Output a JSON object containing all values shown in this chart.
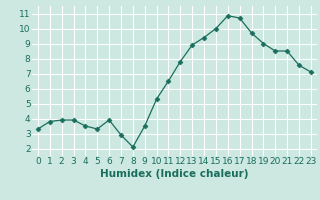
{
  "x": [
    0,
    1,
    2,
    3,
    4,
    5,
    6,
    7,
    8,
    9,
    10,
    11,
    12,
    13,
    14,
    15,
    16,
    17,
    18,
    19,
    20,
    21,
    22,
    23
  ],
  "y": [
    3.3,
    3.8,
    3.9,
    3.9,
    3.5,
    3.3,
    3.9,
    2.9,
    2.1,
    3.5,
    5.3,
    6.5,
    7.8,
    8.9,
    9.4,
    10.0,
    10.85,
    10.7,
    9.7,
    9.0,
    8.5,
    8.5,
    7.55,
    7.1
  ],
  "line_color": "#1a6e5e",
  "marker": "D",
  "marker_size": 2.5,
  "bg_color": "#cce8e0",
  "grid_color": "#ffffff",
  "xlabel": "Humidex (Indice chaleur)",
  "xlabel_fontsize": 7.5,
  "tick_fontsize": 6.5,
  "xlim": [
    -0.5,
    23.5
  ],
  "ylim": [
    1.5,
    11.5
  ],
  "yticks": [
    2,
    3,
    4,
    5,
    6,
    7,
    8,
    9,
    10,
    11
  ],
  "xtick_labels": [
    "0",
    "1",
    "2",
    "3",
    "4",
    "5",
    "6",
    "7",
    "8",
    "9",
    "10",
    "11",
    "12",
    "13",
    "14",
    "15",
    "16",
    "17",
    "18",
    "19",
    "20",
    "21",
    "22",
    "23"
  ]
}
